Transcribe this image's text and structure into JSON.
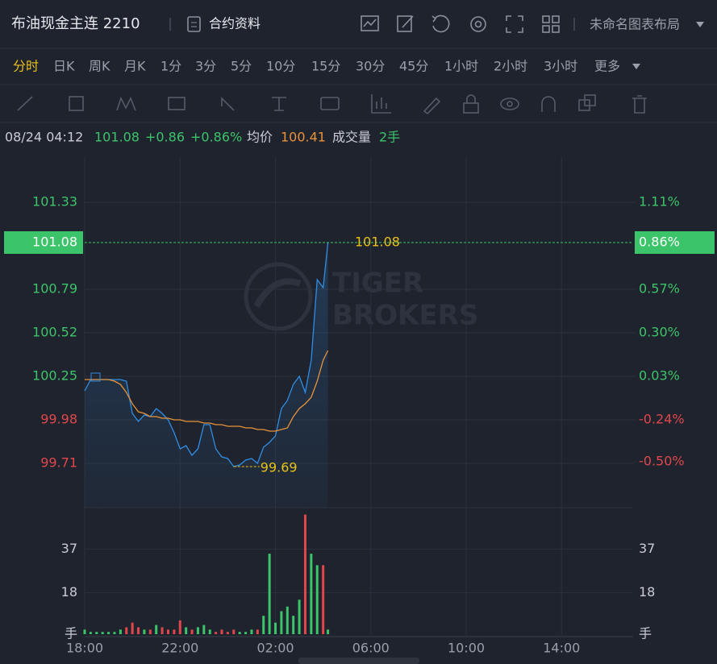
{
  "header": {
    "title": "布油现金主连 2210",
    "contract_info": "合约资料",
    "layout_name": "未命名图表布局"
  },
  "intervals": {
    "items": [
      "分时",
      "日K",
      "周K",
      "月K",
      "1分",
      "3分",
      "5分",
      "10分",
      "15分",
      "30分",
      "45分",
      "1小时",
      "2小时",
      "3小时",
      "更多"
    ],
    "active": 0
  },
  "info": {
    "time": "08/24 04:12",
    "price": "101.08",
    "change": "+0.86",
    "change_pct": "+0.86%",
    "avg_label": "均价",
    "avg": "100.41",
    "volume_label": "成交量",
    "volume": "2手"
  },
  "watermark": [
    "TIGER",
    "BROKERS"
  ],
  "chart_data": [
    {
      "type": "line",
      "x": [
        "18:00",
        "18:15",
        "18:30",
        "18:45",
        "19:00",
        "19:15",
        "19:30",
        "19:45",
        "20:00",
        "20:15",
        "20:30",
        "20:45",
        "21:00",
        "21:15",
        "21:30",
        "21:45",
        "22:00",
        "22:15",
        "22:30",
        "22:45",
        "23:00",
        "23:15",
        "23:30",
        "23:45",
        "00:00",
        "00:15",
        "00:30",
        "00:45",
        "01:00",
        "01:15",
        "01:30",
        "01:45",
        "02:00",
        "02:15",
        "02:30",
        "02:45",
        "03:00",
        "03:15",
        "03:30",
        "03:45",
        "04:00",
        "04:12"
      ],
      "xlim": [
        "18:00",
        "17:00"
      ],
      "xticks": [
        "18:00",
        "22:00",
        "02:00",
        "06:00",
        "10:00",
        "14:00"
      ],
      "ylim": [
        99.435,
        101.61
      ],
      "yticks": [
        101.33,
        100.79,
        100.52,
        100.25,
        99.98,
        99.71
      ],
      "y2lim": [
        -0.785,
        1.39
      ],
      "y2ticks": [
        {
          "value": 1.11,
          "label": "1.11%"
        },
        {
          "value": 0.57,
          "label": "0.57%"
        },
        {
          "value": 0.3,
          "label": "0.30%"
        },
        {
          "value": 0.03,
          "label": "0.03%"
        },
        {
          "value": -0.24,
          "label": "-0.24%"
        },
        {
          "value": -0.5,
          "label": "-0.50%"
        }
      ],
      "grid": true,
      "up_color": "#3cc46a",
      "down_color": "#e0474c",
      "label_color": "#e8c21b",
      "series": [
        {
          "color": "#2f8de4",
          "values": [
            100.16,
            100.23,
            100.23,
            100.23,
            100.23,
            100.23,
            100.23,
            100.22,
            100.02,
            99.97,
            100.01,
            100.0,
            100.05,
            100.02,
            99.98,
            99.9,
            99.8,
            99.82,
            99.76,
            99.8,
            99.95,
            99.95,
            99.8,
            99.75,
            99.74,
            99.69,
            99.7,
            99.73,
            99.74,
            99.71,
            99.81,
            99.84,
            99.88,
            100.05,
            100.1,
            100.2,
            100.25,
            100.15,
            100.35,
            100.85,
            100.8,
            101.08
          ]
        },
        {
          "color": "#e8923a",
          "values": [
            100.23,
            100.23,
            100.23,
            100.23,
            100.23,
            100.22,
            100.2,
            100.15,
            100.08,
            100.03,
            100.02,
            100.0,
            100.0,
            99.99,
            99.99,
            99.98,
            99.98,
            99.97,
            99.97,
            99.97,
            99.96,
            99.96,
            99.95,
            99.95,
            99.94,
            99.94,
            99.94,
            99.93,
            99.93,
            99.92,
            99.92,
            99.91,
            99.91,
            99.92,
            99.93,
            100.0,
            100.05,
            100.08,
            100.12,
            100.22,
            100.35,
            100.41
          ]
        }
      ],
      "last_pct": {
        "value": 0.86,
        "label": "0.86%"
      }
    },
    {
      "type": "bar",
      "values": [
        2,
        1,
        1,
        1,
        1,
        1,
        2,
        3,
        5,
        3,
        2,
        2,
        4,
        3,
        2,
        2,
        6,
        3,
        2,
        3,
        4,
        2,
        1,
        2,
        1,
        2,
        1,
        1,
        2,
        2,
        8,
        35,
        5,
        10,
        12,
        8,
        15,
        52,
        35,
        30,
        30,
        2
      ],
      "ylim": [
        0,
        55
      ],
      "yticks": [
        {
          "value": 0,
          "label": "手"
        },
        18,
        37
      ],
      "up_color": "#3cc46a",
      "down_color": "#e0474c"
    }
  ]
}
